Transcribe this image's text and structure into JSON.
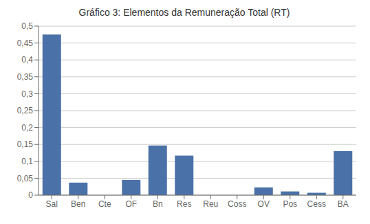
{
  "chart_data": {
    "type": "bar",
    "title": "Gráfico 3: Elementos da Remuneração Total (RT)",
    "categories": [
      "Sal",
      "Ben",
      "Cte",
      "OF",
      "Bn",
      "Res",
      "Reu",
      "Coss",
      "OV",
      "Pos",
      "Cess",
      "BA"
    ],
    "values": [
      0.475,
      0.037,
      0.0,
      0.045,
      0.147,
      0.117,
      0.0,
      0.0,
      0.023,
      0.011,
      0.007,
      0.13
    ],
    "color": "#4a72a8",
    "ylim": [
      0,
      0.5
    ],
    "yticks": [
      0,
      {
        "value": 0.05,
        "label": "0,05"
      },
      {
        "value": 0.1,
        "label": "0,1"
      },
      {
        "value": 0.15,
        "label": "0,15"
      },
      {
        "value": 0.2,
        "label": "0,2"
      },
      {
        "value": 0.25,
        "label": "0,25"
      },
      {
        "value": 0.3,
        "label": "0,3"
      },
      {
        "value": 0.35,
        "label": "0,35"
      },
      {
        "value": 0.4,
        "label": "0,4"
      },
      {
        "value": 0.45,
        "label": "0,45"
      },
      {
        "value": 0.5,
        "label": "0,5"
      }
    ],
    "grid": true
  }
}
